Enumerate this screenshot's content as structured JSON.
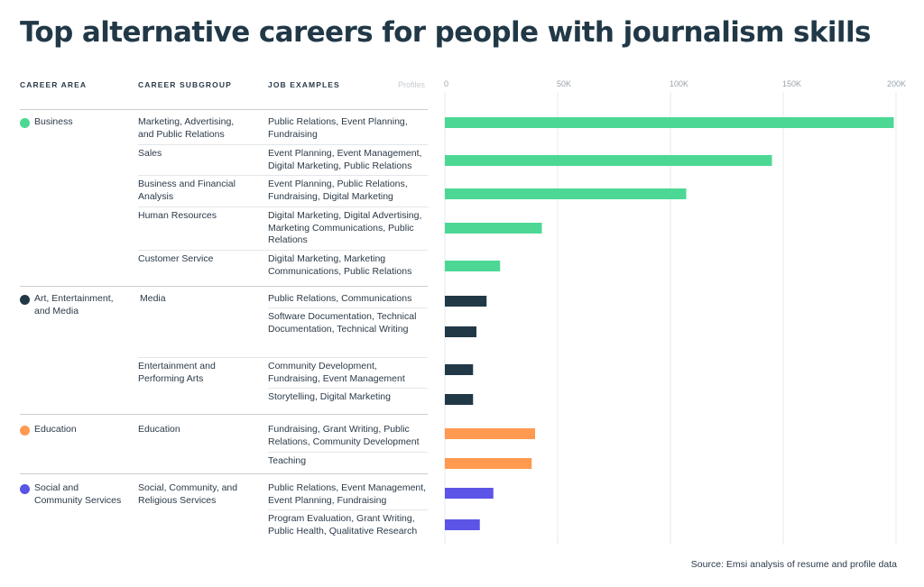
{
  "title": "Top alternative careers for people with journalism skills",
  "headers": {
    "career_area": "CAREER AREA",
    "career_subgroup": "CAREER SUBGROUP",
    "job_examples": "JOB EXAMPLES",
    "profiles": "Profiles"
  },
  "source": "Source: Emsi analysis of resume and profile data",
  "areas": [
    {
      "label": "Business",
      "color": "#4cd894"
    },
    {
      "label": "Art, Entertainment, and Media",
      "color": "#213847"
    },
    {
      "label": "Education",
      "color": "#ff9a50"
    },
    {
      "label": "Social and Community Services",
      "color": "#5b54e6"
    }
  ],
  "subgroups": [
    "Marketing, Advertising, and Public Relations",
    "Sales",
    "Business and Financial Analysis",
    "Human Resources",
    "Customer Service",
    "Media",
    "Entertainment and Performing Arts",
    "Education",
    "Social, Community, and Religious Services"
  ],
  "rows": [
    {
      "area": 0,
      "subgroup": 0,
      "jobs": "Public Relations, Event Planning, Fundraising"
    },
    {
      "area": 0,
      "subgroup": 1,
      "jobs": "Event Planning, Event Management, Digital Marketing, Public Relations"
    },
    {
      "area": 0,
      "subgroup": 2,
      "jobs": "Event Planning, Public Relations, Fundraising, Digital Marketing"
    },
    {
      "area": 0,
      "subgroup": 3,
      "jobs": "Digital Marketing, Digital Advertising, Marketing Communications, Public Relations"
    },
    {
      "area": 0,
      "subgroup": 4,
      "jobs": "Digital Marketing, Marketing Communications, Public Relations"
    },
    {
      "area": 1,
      "subgroup": 5,
      "jobs": "Public Relations, Communications"
    },
    {
      "area": 1,
      "subgroup": 5,
      "jobs": "Software Documentation, Technical Documentation, Technical Writing"
    },
    {
      "area": 1,
      "subgroup": 6,
      "jobs": "Community Development, Fundraising, Event Management"
    },
    {
      "area": 1,
      "subgroup": 6,
      "jobs": "Storytelling, Digital Marketing"
    },
    {
      "area": 2,
      "subgroup": 7,
      "jobs": "Fundraising, Grant Writing, Public Relations, Community Development"
    },
    {
      "area": 2,
      "subgroup": 7,
      "jobs": "Teaching"
    },
    {
      "area": 3,
      "subgroup": 8,
      "jobs": "Public Relations, Event Management, Event Planning, Fundraising"
    },
    {
      "area": 3,
      "subgroup": 8,
      "jobs": "Program Evaluation, Grant Writing, Public Health, Qualitative Research"
    }
  ],
  "chart_data": {
    "type": "bar",
    "orientation": "horizontal",
    "xlabel": "Profiles",
    "xlim": [
      0,
      200000
    ],
    "x_ticks": [
      0,
      50000,
      100000,
      150000,
      200000
    ],
    "x_tick_labels": [
      "0",
      "50K",
      "100K",
      "150K",
      "200K"
    ],
    "grid": true,
    "categories": [
      "Public Relations, Event Planning, Fundraising",
      "Event Planning, Event Management, Digital Marketing, Public Relations",
      "Event Planning, Public Relations, Fundraising, Digital Marketing",
      "Digital Marketing, Digital Advertising, Marketing Communications, Public Relations",
      "Digital Marketing, Marketing Communications, Public Relations",
      "Public Relations, Communications",
      "Software Documentation, Technical Documentation, Technical Writing",
      "Community Development, Fundraising, Event Management",
      "Storytelling, Digital Marketing",
      "Fundraising, Grant Writing, Public Relations, Community Development",
      "Teaching",
      "Public Relations, Event Management, Event Planning, Fundraising",
      "Program Evaluation, Grant Writing, Public Health, Qualitative Research"
    ],
    "values": [
      199000,
      145000,
      107000,
      43000,
      24500,
      18500,
      14000,
      12500,
      12500,
      40000,
      38500,
      21500,
      15500
    ],
    "colors": [
      "#4cd894",
      "#4cd894",
      "#4cd894",
      "#4cd894",
      "#4cd894",
      "#213847",
      "#213847",
      "#213847",
      "#213847",
      "#ff9a50",
      "#ff9a50",
      "#5b54e6",
      "#5b54e6"
    ]
  }
}
